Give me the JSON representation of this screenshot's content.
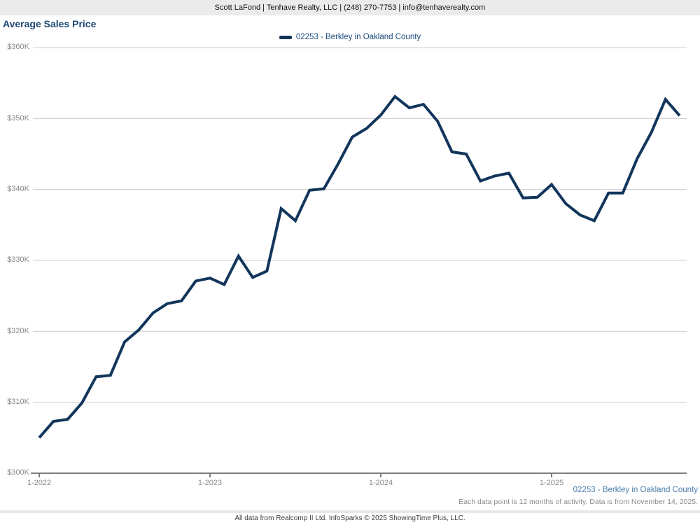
{
  "header": {
    "contact": "Scott LaFond | Tenhave Realty, LLC | (248) 270-7753 | info@tenhaverealty.com"
  },
  "title": "Average Sales Price",
  "legend": {
    "label": "02253 - Berkley in Oakland County",
    "color": "#12355b"
  },
  "chart_data": {
    "type": "line",
    "title": "Average Sales Price",
    "x": [
      "1-2022",
      "2-2022",
      "3-2022",
      "4-2022",
      "5-2022",
      "6-2022",
      "7-2022",
      "8-2022",
      "9-2022",
      "10-2022",
      "11-2022",
      "12-2022",
      "1-2023",
      "2-2023",
      "3-2023",
      "4-2023",
      "5-2023",
      "6-2023",
      "7-2023",
      "8-2023",
      "9-2023",
      "10-2023",
      "11-2023",
      "12-2023",
      "1-2024",
      "2-2024",
      "3-2024",
      "4-2024",
      "5-2024",
      "6-2024",
      "7-2024",
      "8-2024",
      "9-2024",
      "10-2024",
      "11-2024",
      "12-2024",
      "1-2025",
      "2-2025",
      "3-2025",
      "4-2025",
      "5-2025",
      "6-2025",
      "7-2025",
      "8-2025",
      "9-2025",
      "10-2025"
    ],
    "series": [
      {
        "name": "02253 - Berkley in Oakland County",
        "color": "#12355b",
        "values": [
          305000,
          307300,
          307600,
          309900,
          313600,
          313800,
          318500,
          320200,
          322600,
          323900,
          324300,
          327100,
          327500,
          326600,
          330600,
          327600,
          328500,
          337300,
          335600,
          339900,
          340100,
          343600,
          347400,
          348600,
          350500,
          353100,
          351500,
          352000,
          349600,
          345300,
          345000,
          341200,
          341900,
          342300,
          338800,
          338900,
          340700,
          338000,
          336400,
          335600,
          339500,
          339500,
          344300,
          348000,
          352700,
          350400
        ]
      }
    ],
    "ylim": [
      300000,
      360000
    ],
    "y_tick_labels": [
      "$360K",
      "$350K",
      "$340K",
      "$330K",
      "$320K",
      "$310K",
      "$300K"
    ],
    "x_tick_labels": [
      "1-2022",
      "1-2023",
      "1-2024",
      "1-2025"
    ],
    "grid": "horizontal",
    "legend_position": "top-center"
  },
  "footer": {
    "series_label": "02253 - Berkley in Oakland County",
    "note": "Each data point is 12 months of activity. Data is from November 14, 2025.",
    "attribution": "All data from Realcomp II Ltd. InfoSparks © 2025 ShowingTime Plus, LLC."
  },
  "colors": {
    "line": "#12355b",
    "title": "#1d4872",
    "legend_text": "#1b4b7c",
    "footer_series": "#4a7dab",
    "tick_text": "#8a8a8a",
    "gridline": "#cccccc",
    "axis": "#7d7d7d",
    "header_bg": "#ebebeb"
  }
}
